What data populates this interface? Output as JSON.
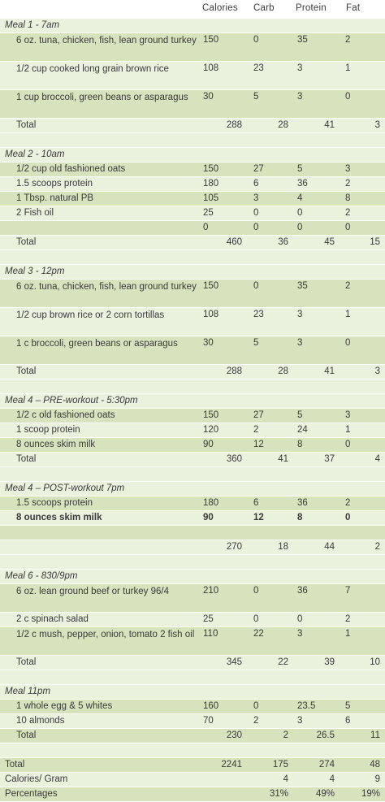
{
  "headers": {
    "calories": "Calories",
    "carb": "Carb",
    "protein": "Protein",
    "fat": "Fat"
  },
  "meals": [
    {
      "title": "Meal 1 - 7am",
      "items": [
        {
          "label": "6 oz. tuna, chicken, fish, lean ground turkey",
          "cal": "150",
          "carb": "0",
          "pro": "35",
          "fat": "2",
          "tall": true
        },
        {
          "label": "1/2 cup cooked long grain brown rice",
          "cal": "108",
          "carb": "23",
          "pro": "3",
          "fat": "1",
          "tall": true
        },
        {
          "label": "1 cup broccoli, green beans or asparagus",
          "cal": "30",
          "carb": "5",
          "pro": "3",
          "fat": "0",
          "tall": true
        }
      ],
      "total": {
        "label": "Total",
        "cal": "288",
        "carb": "28",
        "pro": "41",
        "fat": "3"
      }
    },
    {
      "title": "Meal 2  - 10am",
      "items": [
        {
          "label": "1/2 cup old fashioned oats",
          "cal": "150",
          "carb": "27",
          "pro": "5",
          "fat": "3"
        },
        {
          "label": "1.5 scoops protein",
          "cal": "180",
          "carb": "6",
          "pro": "36",
          "fat": "2"
        },
        {
          "label": "1 Tbsp. natural PB",
          "cal": "105",
          "carb": "3",
          "pro": "4",
          "fat": "8"
        },
        {
          "label": "2 Fish oil",
          "cal": "25",
          "carb": "0",
          "pro": "0",
          "fat": "2"
        },
        {
          "label": "",
          "cal": "0",
          "carb": "0",
          "pro": "0",
          "fat": "0"
        }
      ],
      "total": {
        "label": "Total",
        "cal": "460",
        "carb": "36",
        "pro": "45",
        "fat": "15"
      }
    },
    {
      "title": "Meal 3 - 12pm",
      "items": [
        {
          "label": "6 oz. tuna, chicken, fish, lean ground turkey",
          "cal": "150",
          "carb": "0",
          "pro": "35",
          "fat": "2",
          "tall": true
        },
        {
          "label": "1/2 cup brown rice or 2 corn tortillas",
          "cal": "108",
          "carb": "23",
          "pro": "3",
          "fat": "1",
          "tall": true
        },
        {
          "label": "1 c broccoli, green beans or asparagus",
          "cal": "30",
          "carb": "5",
          "pro": "3",
          "fat": "0",
          "tall": true
        }
      ],
      "total": {
        "label": "Total",
        "cal": "288",
        "carb": "28",
        "pro": "41",
        "fat": "3"
      }
    },
    {
      "title": "Meal 4 – PRE-workout - 5:30pm",
      "items": [
        {
          "label": "1/2 c old fashioned oats",
          "cal": "150",
          "carb": "27",
          "pro": "5",
          "fat": "3"
        },
        {
          "label": "1 scoop protein",
          "cal": "120",
          "carb": "2",
          "pro": "24",
          "fat": "1"
        },
        {
          "label": "8 ounces skim milk",
          "cal": "90",
          "carb": "12",
          "pro": "8",
          "fat": "0"
        }
      ],
      "total": {
        "label": "Total",
        "cal": "360",
        "carb": "41",
        "pro": "37",
        "fat": "4"
      }
    },
    {
      "title": "Meal 4 – POST-workout 7pm",
      "items": [
        {
          "label": "1.5 scoops protein",
          "cal": "180",
          "carb": "6",
          "pro": "36",
          "fat": "2"
        },
        {
          "label": "8 ounces skim milk",
          "cal": "90",
          "carb": "12",
          "pro": "8",
          "fat": "0",
          "bold": true
        },
        {
          "label": "",
          "cal": "",
          "carb": "",
          "pro": "",
          "fat": ""
        }
      ],
      "total": {
        "label": "",
        "cal": "270",
        "carb": "18",
        "pro": "44",
        "fat": "2"
      }
    },
    {
      "title": "Meal 6 - 830/9pm",
      "items": [
        {
          "label": "6 oz. lean ground beef or turkey 96/4",
          "cal": "210",
          "carb": "0",
          "pro": "36",
          "fat": "7",
          "tall": true
        },
        {
          "label": "2 c spinach salad",
          "cal": "25",
          "carb": "0",
          "pro": "0",
          "fat": "2"
        },
        {
          "label": "1/2 c mush, pepper, onion, tomato 2 fish oil",
          "cal": "110",
          "carb": "22",
          "pro": "3",
          "fat": "1",
          "tall": true
        }
      ],
      "total": {
        "label": "Total",
        "cal": "345",
        "carb": "22",
        "pro": "39",
        "fat": "10"
      }
    },
    {
      "title": "Meal 11pm",
      "items": [
        {
          "label": "1 whole egg & 5 whites",
          "cal": "160",
          "carb": "0",
          "pro": "23.5",
          "fat": "5"
        },
        {
          "label": "10 almonds",
          "cal": "70",
          "carb": "2",
          "pro": "3",
          "fat": "6"
        }
      ],
      "total": {
        "label": "Total",
        "cal": "230",
        "carb": "2",
        "pro": "26.5",
        "fat": "11"
      }
    }
  ],
  "summary": [
    {
      "label": "Total",
      "cal": "2241",
      "carb": "175",
      "pro": "274",
      "fat": "48"
    },
    {
      "label": "Calories/ Gram",
      "cal": "",
      "carb": "4",
      "pro": "4",
      "fat": "9"
    },
    {
      "label": "Percentages",
      "cal": "",
      "carb": "31%",
      "pro": "49%",
      "fat": "19%"
    }
  ]
}
